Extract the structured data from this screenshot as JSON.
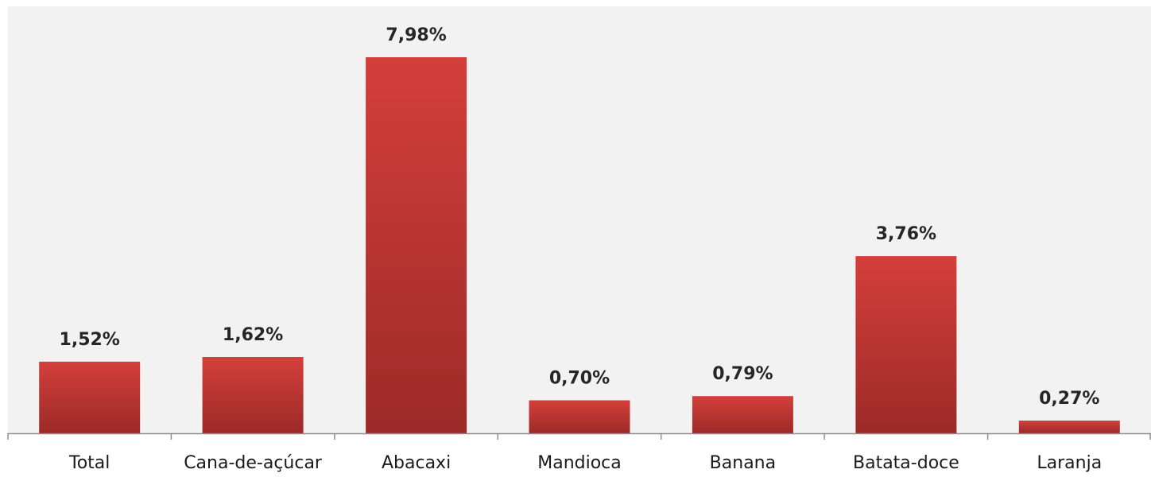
{
  "chart_data": {
    "type": "bar",
    "categories": [
      "Total",
      "Cana-de-açúcar",
      "Abacaxi",
      "Mandioca",
      "Banana",
      "Batata-doce",
      "Laranja"
    ],
    "values": [
      1.52,
      1.62,
      7.98,
      0.7,
      0.79,
      3.76,
      0.27
    ],
    "data_labels": [
      "1,52%",
      "1,62%",
      "7,98%",
      "0,70%",
      "0,79%",
      "3,76%",
      "0,27%"
    ],
    "title": "",
    "xlabel": "",
    "ylabel": "",
    "ylim": [
      0,
      8
    ],
    "grid": false,
    "legend": "none",
    "colors": {
      "bar_top": "#d43f3a",
      "bar_bottom": "#9c2a28",
      "plot_background": "#f2f2f2",
      "axis": "#8c8c8c"
    }
  }
}
